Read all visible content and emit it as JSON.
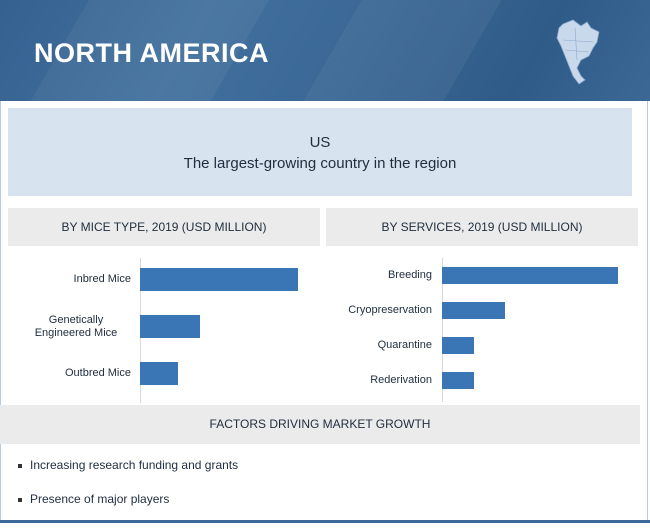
{
  "header": {
    "title": "NORTH AMERICA",
    "map_icon": "north-america-map-icon"
  },
  "highlight": {
    "country": "US",
    "subtitle": "The largest-growing country in the region"
  },
  "colors": {
    "header": "#3a6795",
    "bar": "#3a75b5",
    "highlight_bg": "#d7e4f0",
    "section_bg": "#ebebeb"
  },
  "chart_data": [
    {
      "type": "bar",
      "orientation": "horizontal",
      "title": "BY MICE TYPE, 2019 (USD MILLION)",
      "categories": [
        "Inbred Mice",
        "Genetically Engineered Mice",
        "Outbred Mice"
      ],
      "values": [
        1.0,
        0.38,
        0.24
      ],
      "axis_labels_shown": false
    },
    {
      "type": "bar",
      "orientation": "horizontal",
      "title": "BY SERVICES, 2019 (USD MILLION)",
      "categories": [
        "Breeding",
        "Cryopreservation",
        "Quarantine",
        "Rederivation"
      ],
      "values": [
        1.0,
        0.36,
        0.18,
        0.18
      ],
      "axis_labels_shown": false
    }
  ],
  "factors": {
    "title": "FACTORS DRIVING MARKET GROWTH",
    "items": [
      "Increasing research funding and grants",
      "Presence of major players"
    ]
  }
}
